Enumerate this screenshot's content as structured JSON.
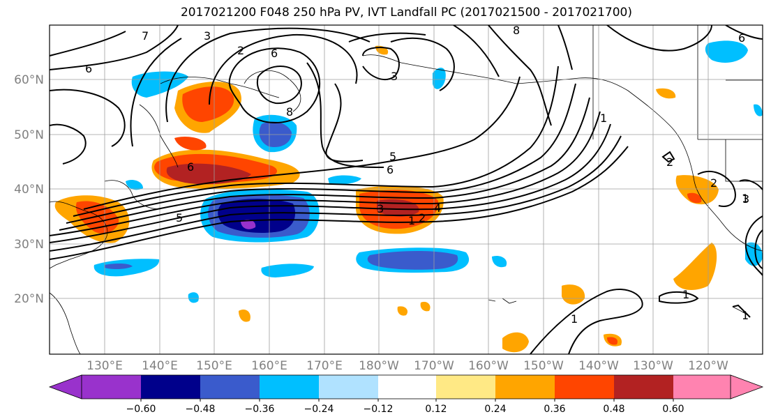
{
  "title": "2017021200 F048 250 hPa PV, IVT Landfall PC (2017021500 - 2017021700)",
  "lat_labels": [
    "60°N",
    "50°N",
    "40°N",
    "30°N",
    "20°N"
  ],
  "lon_labels": [
    "130°E",
    "140°E",
    "150°E",
    "160°E",
    "170°E",
    "180°W",
    "170°W",
    "160°W",
    "150°W",
    "140°W",
    "130°W",
    "120°W"
  ],
  "colorbar": {
    "colors": [
      "#9932cc",
      "#00008b",
      "#3a5bcc",
      "#00bfff",
      "#b0e2ff",
      "#ffffff",
      "#ffe985",
      "#ffa500",
      "#ff4500",
      "#b22222",
      "#ff83b0"
    ],
    "ticks": [
      "−0.60",
      "−0.48",
      "−0.36",
      "−0.24",
      "−0.12",
      "0.12",
      "0.24",
      "0.36",
      "0.48",
      "0.60"
    ]
  },
  "contour_labels": [
    "7",
    "3",
    "2",
    "6",
    "6",
    "6",
    "8",
    "3",
    "8",
    "5",
    "6",
    "1",
    "4",
    "3",
    "5",
    "2",
    "1",
    "2",
    "1",
    "3",
    "1",
    "2",
    "1",
    "1",
    "6"
  ],
  "shading_colors": {
    "red": "#ff4500",
    "orange": "#ffa500",
    "darkred": "#b22222",
    "yellow": "#ffe985",
    "cyan": "#00bfff",
    "lightblue": "#b0e2ff",
    "blue": "#3a5bcc",
    "navy": "#00008b",
    "purple": "#9932cc"
  }
}
